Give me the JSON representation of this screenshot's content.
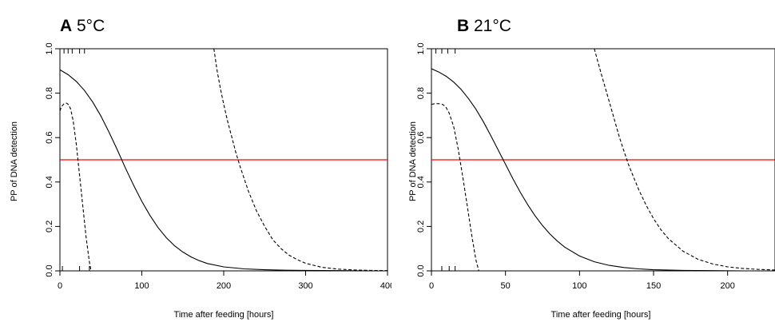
{
  "chart_data": [
    {
      "type": "line",
      "panel": "A",
      "title": "5°C",
      "xlabel": "Time after feeding [hours]",
      "ylabel": "PP of DNA detection",
      "xlim": [
        0,
        400
      ],
      "ylim": [
        0,
        1
      ],
      "xticks": [
        0,
        100,
        200,
        300,
        400
      ],
      "yticks": [
        0.0,
        0.2,
        0.4,
        0.6,
        0.8,
        1.0
      ],
      "ytick_labels": [
        "0.0",
        "0.2",
        "0.4",
        "0.6",
        "0.8",
        "1.0"
      ],
      "grid": false,
      "threshold": {
        "y": 0.5,
        "color": "#ff0000"
      },
      "rug_top": [
        5,
        10,
        15,
        24,
        30
      ],
      "rug_bottom": [
        3,
        24,
        36
      ],
      "series": [
        {
          "style": "solid",
          "x": [
            0,
            10,
            20,
            30,
            40,
            50,
            60,
            70,
            80,
            90,
            100,
            110,
            120,
            130,
            140,
            150,
            160,
            170,
            180,
            200,
            225,
            250,
            275,
            300,
            340,
            380,
            400
          ],
          "y": [
            0.905,
            0.883,
            0.853,
            0.812,
            0.76,
            0.697,
            0.624,
            0.545,
            0.463,
            0.385,
            0.313,
            0.249,
            0.194,
            0.149,
            0.113,
            0.085,
            0.063,
            0.046,
            0.033,
            0.018,
            0.009,
            0.005,
            0.003,
            0.002,
            0.001,
            0.0,
            0.0
          ]
        },
        {
          "style": "dashed",
          "x": [
            0,
            2,
            5,
            8,
            10,
            13,
            16,
            20,
            24,
            28,
            32,
            36,
            38
          ],
          "y": [
            0.72,
            0.74,
            0.752,
            0.755,
            0.75,
            0.73,
            0.68,
            0.57,
            0.43,
            0.29,
            0.15,
            0.04,
            0.0
          ]
        },
        {
          "style": "dashed",
          "x": [
            188,
            192,
            196,
            200,
            205,
            210,
            215,
            220,
            225,
            230,
            240,
            250,
            260,
            270,
            280,
            290,
            300,
            320,
            340,
            360,
            380,
            400
          ],
          "y": [
            1.0,
            0.9,
            0.82,
            0.75,
            0.67,
            0.6,
            0.53,
            0.47,
            0.415,
            0.36,
            0.27,
            0.2,
            0.14,
            0.1,
            0.07,
            0.05,
            0.034,
            0.016,
            0.008,
            0.004,
            0.002,
            0.001
          ]
        }
      ]
    },
    {
      "type": "line",
      "panel": "B",
      "title": "21°C",
      "xlabel": "Time after feeding [hours]",
      "ylabel": "PP of DNA detection",
      "xlim": [
        0,
        232
      ],
      "ylim": [
        0,
        1
      ],
      "xticks": [
        0,
        50,
        100,
        150,
        200
      ],
      "yticks": [
        0.0,
        0.2,
        0.4,
        0.6,
        0.8,
        1.0
      ],
      "ytick_labels": [
        "0.0",
        "0.2",
        "0.4",
        "0.6",
        "0.8",
        "1.0"
      ],
      "grid": false,
      "threshold": {
        "y": 0.5,
        "color": "#ff0000"
      },
      "rug_top": [
        3,
        7,
        11,
        16
      ],
      "rug_bottom": [
        7,
        12,
        16
      ],
      "series": [
        {
          "style": "solid",
          "x": [
            0,
            5,
            10,
            15,
            20,
            25,
            30,
            35,
            40,
            45,
            50,
            55,
            60,
            65,
            70,
            75,
            80,
            85,
            90,
            100,
            110,
            120,
            130,
            140,
            150,
            170,
            190,
            210,
            232
          ],
          "y": [
            0.91,
            0.895,
            0.876,
            0.85,
            0.817,
            0.776,
            0.728,
            0.672,
            0.61,
            0.545,
            0.48,
            0.415,
            0.354,
            0.298,
            0.248,
            0.204,
            0.166,
            0.134,
            0.107,
            0.067,
            0.041,
            0.025,
            0.015,
            0.009,
            0.005,
            0.002,
            0.001,
            0.0,
            0.0
          ]
        },
        {
          "style": "dashed",
          "x": [
            0,
            2,
            4,
            6,
            8,
            10,
            12,
            15,
            18,
            21,
            24,
            27,
            30,
            32
          ],
          "y": [
            0.75,
            0.752,
            0.753,
            0.752,
            0.748,
            0.735,
            0.71,
            0.65,
            0.55,
            0.43,
            0.3,
            0.17,
            0.05,
            0.0
          ]
        },
        {
          "style": "dashed",
          "x": [
            110,
            112,
            115,
            118,
            121,
            124,
            127,
            130,
            133,
            136,
            140,
            145,
            150,
            155,
            160,
            170,
            180,
            190,
            200,
            210,
            220,
            232
          ],
          "y": [
            1.0,
            0.95,
            0.88,
            0.81,
            0.74,
            0.67,
            0.6,
            0.54,
            0.48,
            0.43,
            0.365,
            0.295,
            0.235,
            0.185,
            0.145,
            0.088,
            0.052,
            0.031,
            0.018,
            0.011,
            0.007,
            0.004
          ]
        }
      ]
    }
  ]
}
